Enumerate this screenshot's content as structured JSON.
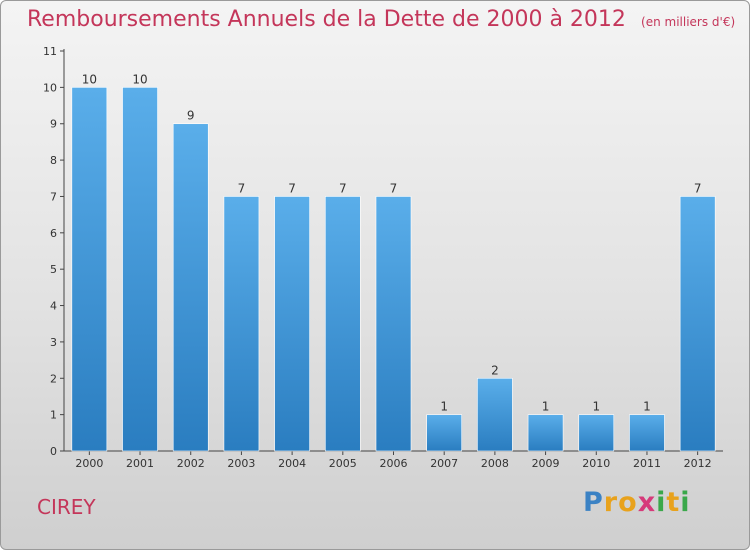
{
  "title": "Remboursements Annuels de la Dette de 2000 à 2012",
  "subtitle": "(en milliers d'€)",
  "commune": "CIREY",
  "logo": {
    "letters": [
      "P",
      "r",
      "o",
      "x",
      "i",
      "t",
      "i"
    ],
    "colors": [
      "#3b82c4",
      "#e8a21c",
      "#e8a21c",
      "#d63a7a",
      "#3aa84a",
      "#e8a21c",
      "#3aa84a"
    ]
  },
  "colors": {
    "bar_light": "#5aaeea",
    "bar_dark": "#2a7dc0",
    "title": "#c4365a"
  },
  "chart_data": {
    "type": "bar",
    "title": "Remboursements Annuels de la Dette de 2000 à 2012",
    "subtitle": "(en milliers d'€)",
    "xlabel": "",
    "ylabel": "",
    "categories": [
      "2000",
      "2001",
      "2002",
      "2003",
      "2004",
      "2005",
      "2006",
      "2007",
      "2008",
      "2009",
      "2010",
      "2011",
      "2012"
    ],
    "values": [
      10,
      10,
      9,
      7,
      7,
      7,
      7,
      1,
      2,
      1,
      1,
      1,
      7
    ],
    "value_labels": [
      "10",
      "10",
      "9",
      "7",
      "7",
      "7",
      "7",
      "1",
      "2",
      "1",
      "1",
      "1",
      "7"
    ],
    "ylim": [
      0,
      11
    ],
    "yticks": [
      0,
      1,
      2,
      3,
      4,
      5,
      6,
      7,
      8,
      9,
      10,
      11
    ],
    "grid": false,
    "legend": "none"
  }
}
